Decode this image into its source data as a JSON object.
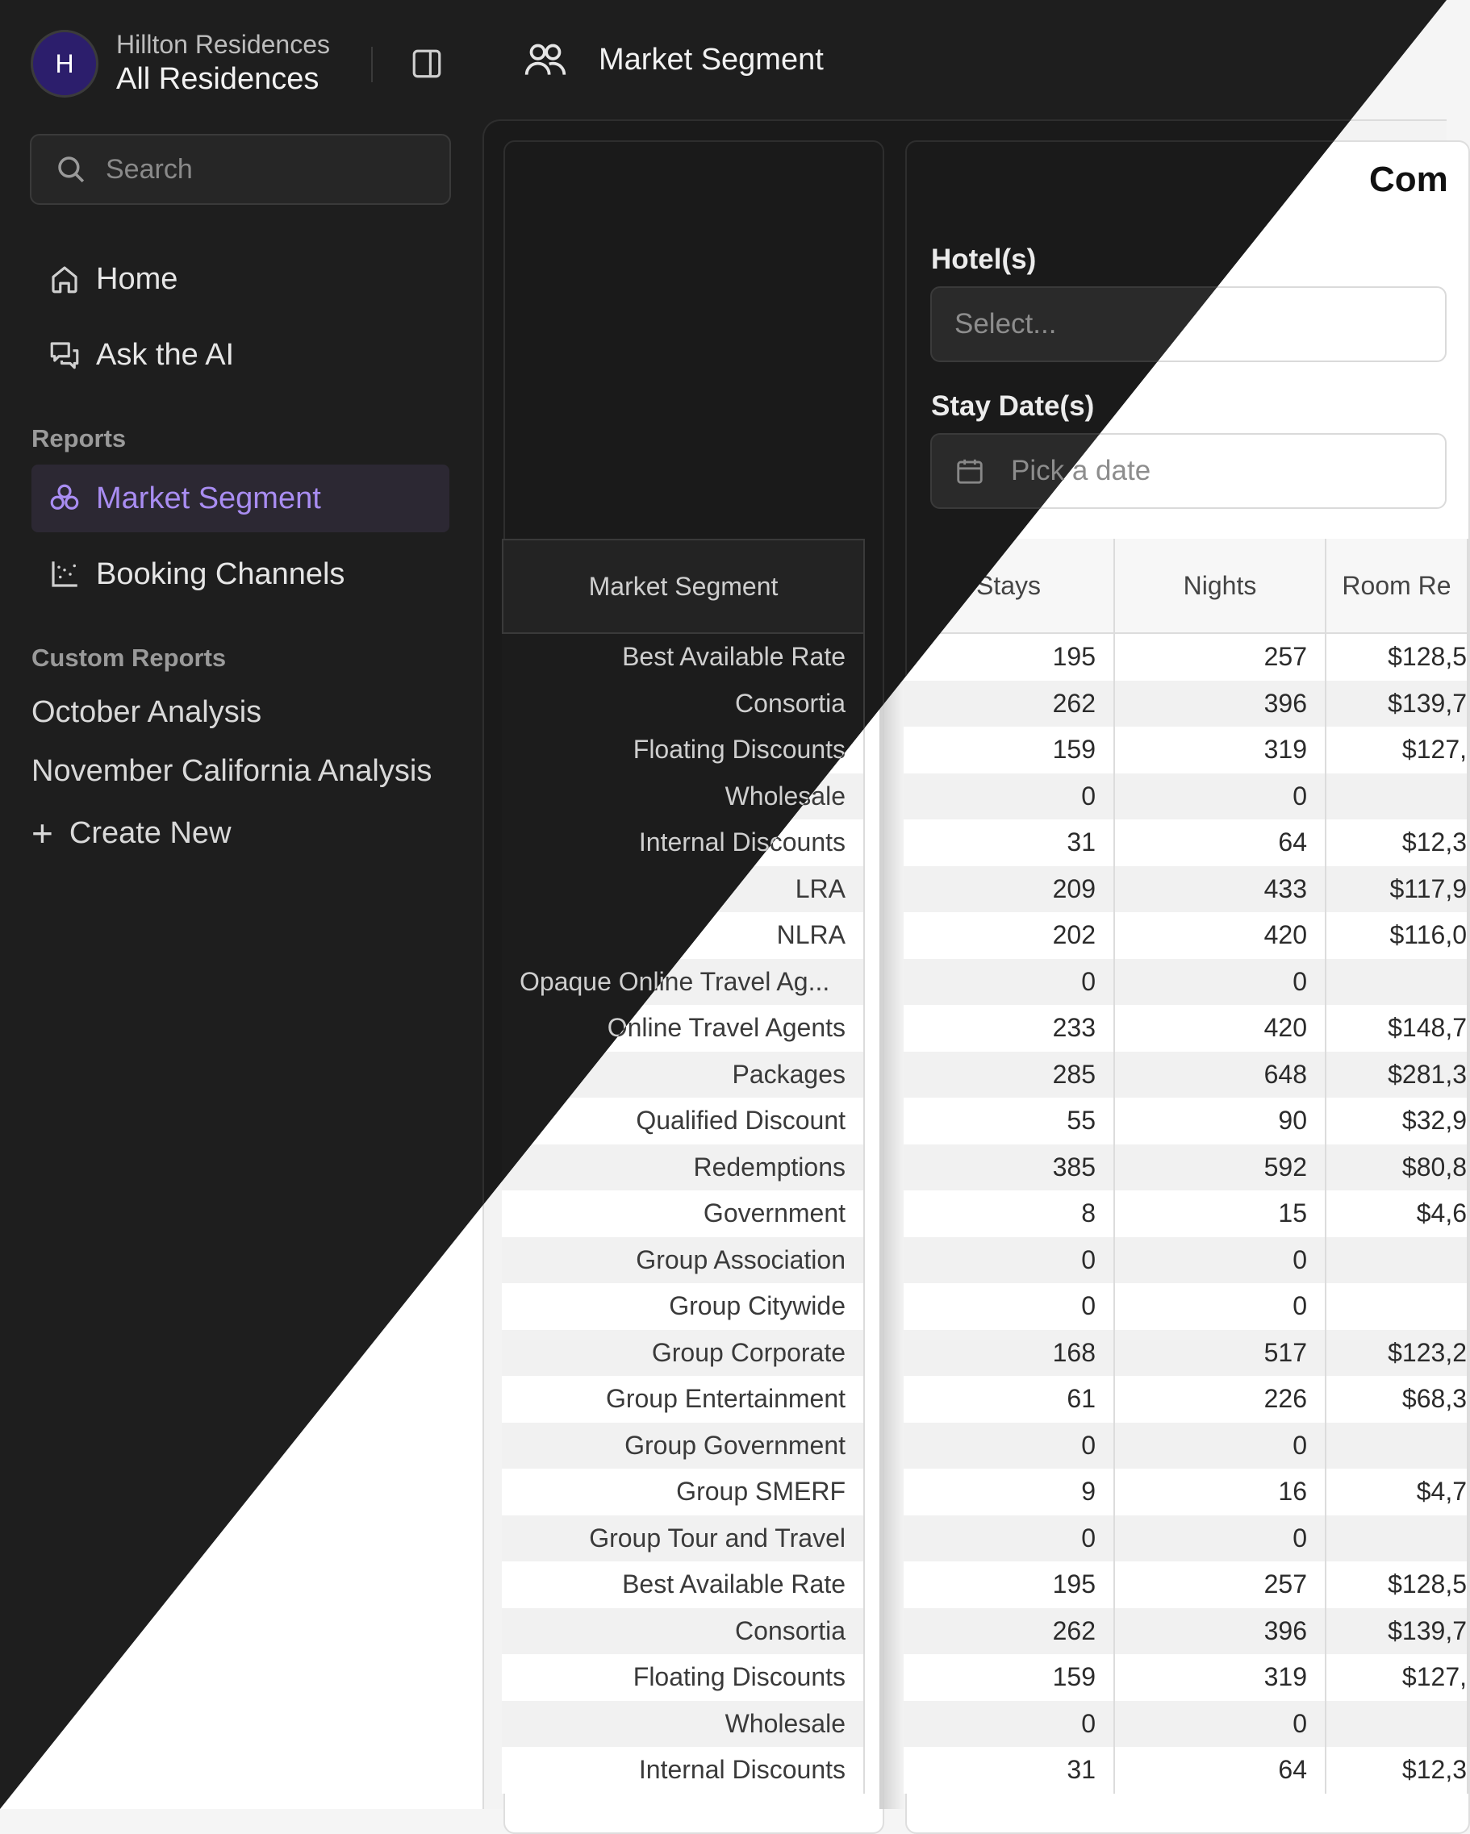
{
  "brand": {
    "initial": "H",
    "subtitle": "Hillton Residences",
    "title": "All Residences"
  },
  "search": {
    "placeholder": "Search"
  },
  "nav": {
    "home": "Home",
    "ask_ai": "Ask the AI"
  },
  "reports": {
    "heading": "Reports",
    "items": [
      "Market Segment",
      "Booking Channels"
    ]
  },
  "custom_reports": {
    "heading": "Custom Reports",
    "items": [
      "October Analysis",
      "November California Analysis"
    ],
    "create_new": "Create New"
  },
  "header": {
    "title": "Market Segment"
  },
  "filters": {
    "comp_title": "Com",
    "hotels_label": "Hotel(s)",
    "hotels_placeholder": "Select...",
    "stay_label": "Stay Date(s)",
    "stay_placeholder": "Pick a date"
  },
  "table": {
    "segment_header": "Market Segment",
    "columns": [
      "Stays",
      "Nights",
      "Room Re"
    ],
    "rows": [
      {
        "segment": "Best Available Rate",
        "stays": "195",
        "nights": "257",
        "revenue": "$128,5"
      },
      {
        "segment": "Consortia",
        "stays": "262",
        "nights": "396",
        "revenue": "$139,7"
      },
      {
        "segment": "Floating Discounts",
        "stays": "159",
        "nights": "319",
        "revenue": "$127,"
      },
      {
        "segment": "Wholesale",
        "stays": "0",
        "nights": "0",
        "revenue": ""
      },
      {
        "segment": "Internal Discounts",
        "stays": "31",
        "nights": "64",
        "revenue": "$12,3"
      },
      {
        "segment": "LRA",
        "stays": "209",
        "nights": "433",
        "revenue": "$117,9"
      },
      {
        "segment": "NLRA",
        "stays": "202",
        "nights": "420",
        "revenue": "$116,0"
      },
      {
        "segment": "Opaque Online Travel Ag...",
        "stays": "0",
        "nights": "0",
        "revenue": ""
      },
      {
        "segment": "Online Travel Agents",
        "stays": "233",
        "nights": "420",
        "revenue": "$148,7"
      },
      {
        "segment": "Packages",
        "stays": "285",
        "nights": "648",
        "revenue": "$281,3"
      },
      {
        "segment": "Qualified Discount",
        "stays": "55",
        "nights": "90",
        "revenue": "$32,9"
      },
      {
        "segment": "Redemptions",
        "stays": "385",
        "nights": "592",
        "revenue": "$80,8"
      },
      {
        "segment": "Government",
        "stays": "8",
        "nights": "15",
        "revenue": "$4,6"
      },
      {
        "segment": "Group Association",
        "stays": "0",
        "nights": "0",
        "revenue": ""
      },
      {
        "segment": "Group Citywide",
        "stays": "0",
        "nights": "0",
        "revenue": ""
      },
      {
        "segment": "Group Corporate",
        "stays": "168",
        "nights": "517",
        "revenue": "$123,2"
      },
      {
        "segment": "Group Entertainment",
        "stays": "61",
        "nights": "226",
        "revenue": "$68,3"
      },
      {
        "segment": "Group Government",
        "stays": "0",
        "nights": "0",
        "revenue": ""
      },
      {
        "segment": "Group SMERF",
        "stays": "9",
        "nights": "16",
        "revenue": "$4,7"
      },
      {
        "segment": "Group Tour and Travel",
        "stays": "0",
        "nights": "0",
        "revenue": ""
      },
      {
        "segment": "Best Available Rate",
        "stays": "195",
        "nights": "257",
        "revenue": "$128,5"
      },
      {
        "segment": "Consortia",
        "stays": "262",
        "nights": "396",
        "revenue": "$139,7"
      },
      {
        "segment": "Floating Discounts",
        "stays": "159",
        "nights": "319",
        "revenue": "$127,"
      },
      {
        "segment": "Wholesale",
        "stays": "0",
        "nights": "0",
        "revenue": ""
      },
      {
        "segment": "Internal Discounts",
        "stays": "31",
        "nights": "64",
        "revenue": "$12,3"
      }
    ]
  },
  "colors": {
    "accent": "#a98df2",
    "active_bg": "#2c2833",
    "avatar_bg": "#2c1e6c",
    "dark_bg": "#1e1e1e",
    "light_bg": "#f5f5f5"
  }
}
